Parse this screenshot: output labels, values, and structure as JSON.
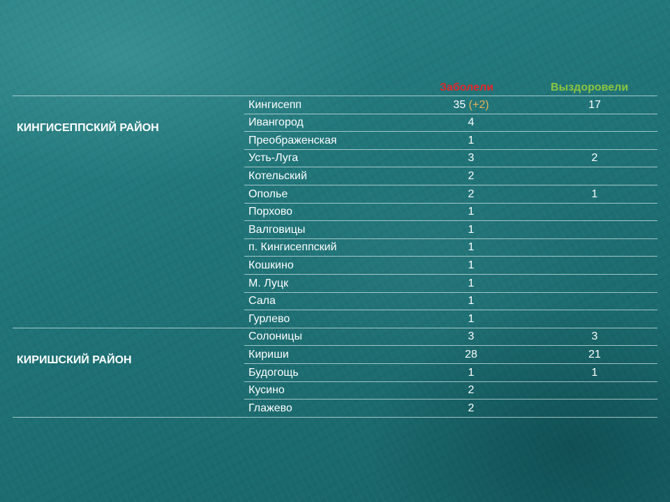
{
  "headers": {
    "sick": "Заболели",
    "recovered": "Выздоровели"
  },
  "colors": {
    "sick_header": "#e0262b",
    "recovered_header": "#8dc63f",
    "delta": "#e8b45a",
    "background": "#1f7275"
  },
  "districts": [
    {
      "name": "КИНГИСЕППСКИЙ РАЙОН",
      "rows": [
        {
          "locality": "Кингисепп",
          "sick": "35",
          "delta": "(+2)",
          "recovered": "17"
        },
        {
          "locality": "Ивангород",
          "sick": "4",
          "recovered": ""
        },
        {
          "locality": "Преображенская",
          "sick": "1",
          "recovered": ""
        },
        {
          "locality": "Усть-Луга",
          "sick": "3",
          "recovered": "2"
        },
        {
          "locality": "Котельский",
          "sick": "2",
          "recovered": ""
        },
        {
          "locality": "Ополье",
          "sick": "2",
          "recovered": "1"
        },
        {
          "locality": "Порхово",
          "sick": "1",
          "recovered": ""
        },
        {
          "locality": "Валговицы",
          "sick": "1",
          "recovered": ""
        },
        {
          "locality": "п. Кингисеппский",
          "sick": "1",
          "recovered": ""
        },
        {
          "locality": "Кошкино",
          "sick": "1",
          "recovered": ""
        },
        {
          "locality": "М. Луцк",
          "sick": "1",
          "recovered": ""
        },
        {
          "locality": "Сала",
          "sick": "1",
          "recovered": ""
        },
        {
          "locality": "Гурлево",
          "sick": "1",
          "recovered": ""
        }
      ]
    },
    {
      "name": "КИРИШСКИЙ РАЙОН",
      "rows": [
        {
          "locality": "Солоницы",
          "sick": "3",
          "recovered": "3"
        },
        {
          "locality": "Кириши",
          "sick": "28",
          "recovered": "21"
        },
        {
          "locality": "Будогощь",
          "sick": "1",
          "recovered": "1"
        },
        {
          "locality": "Кусино",
          "sick": "2",
          "recovered": ""
        },
        {
          "locality": "Глажево",
          "sick": "2",
          "recovered": ""
        }
      ]
    }
  ]
}
